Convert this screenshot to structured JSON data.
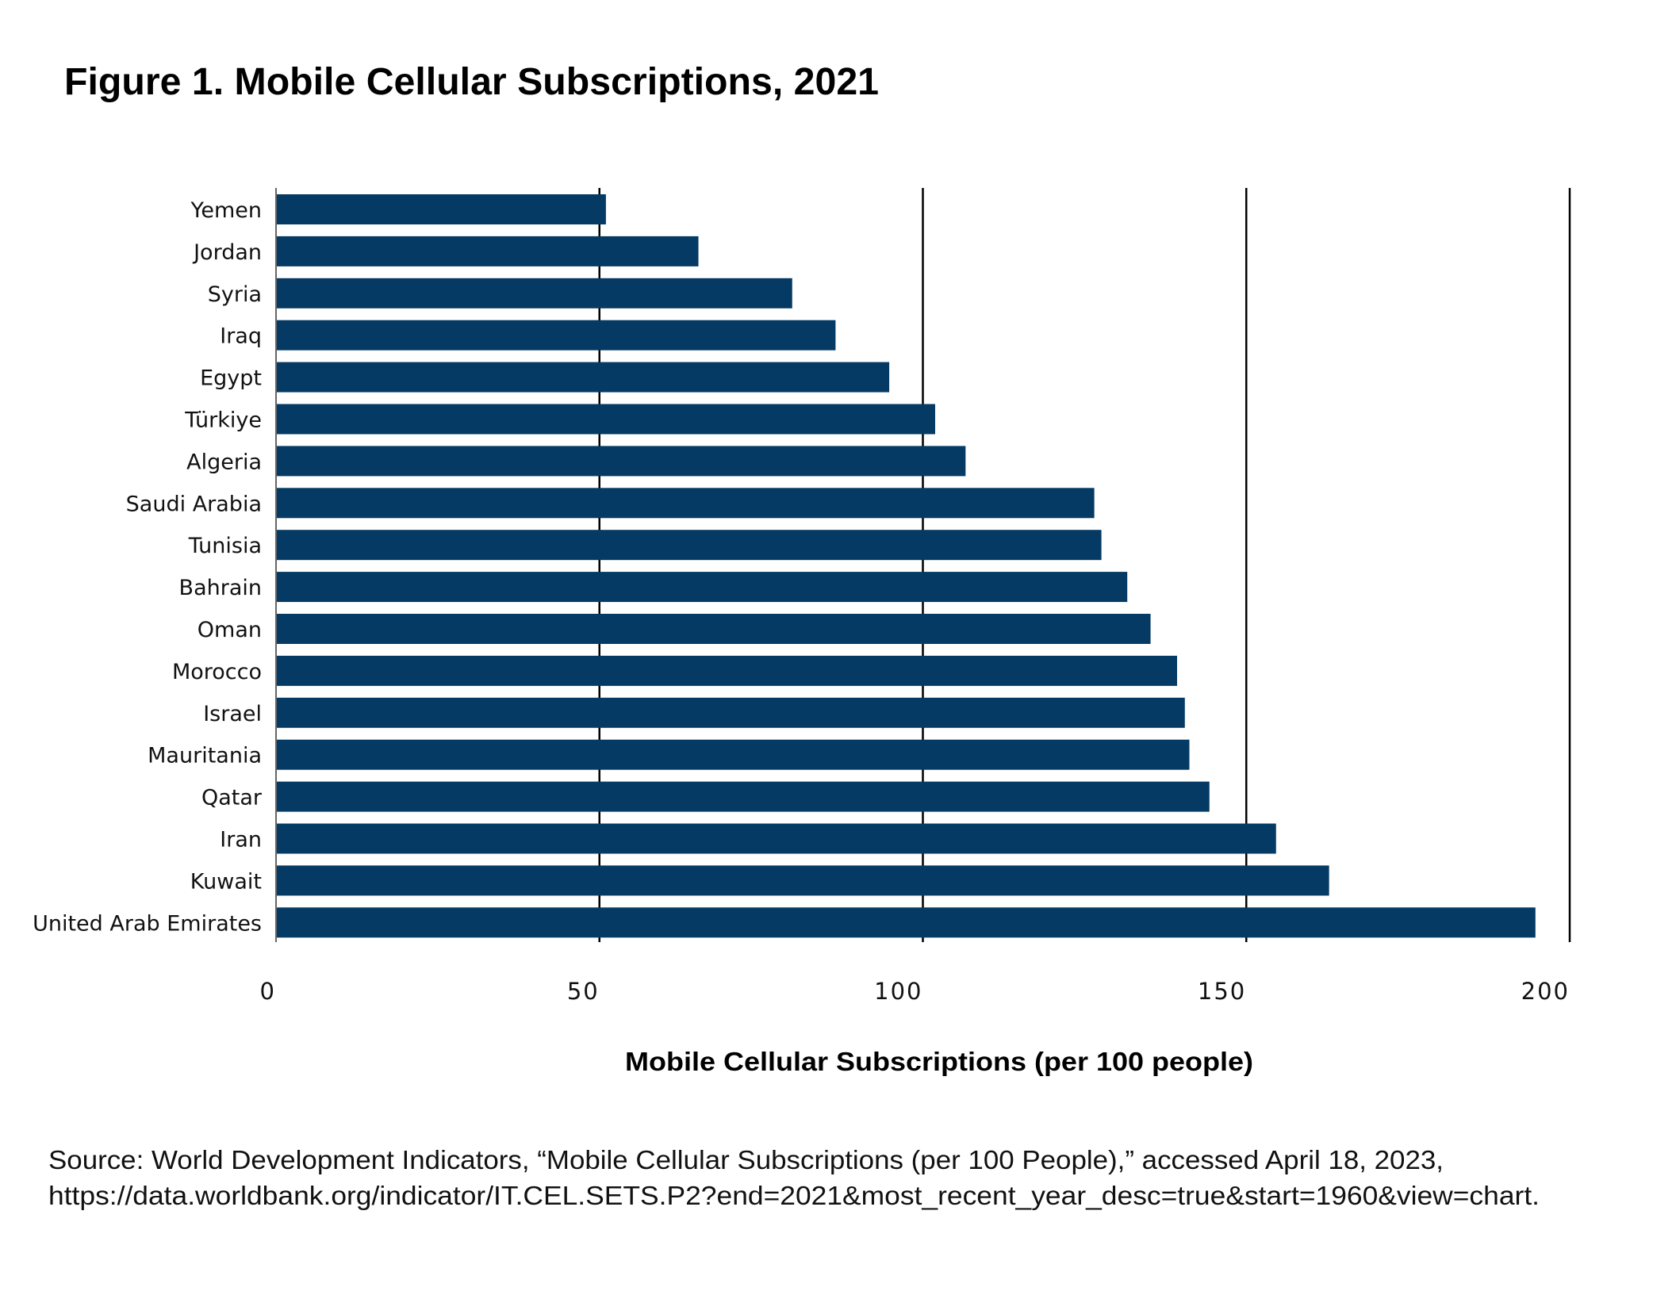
{
  "chart_data": {
    "type": "bar",
    "orientation": "horizontal",
    "title": "Figure 1. Mobile Cellular Subscriptions, 2021",
    "xlabel": "Mobile Cellular Subscriptions (per 100 people)",
    "ylabel": "",
    "xlim": [
      0,
      200
    ],
    "xticks": [
      0,
      50,
      100,
      150,
      200
    ],
    "xtick_labels": [
      "0",
      "50",
      "100",
      "150",
      "200"
    ],
    "grid": "vertical",
    "legend": "none",
    "bar_color": "#043a63",
    "categories": [
      "Yemen",
      "Jordan",
      "Syria",
      "Iraq",
      "Egypt",
      "Türkiye",
      "Algeria",
      "Saudi Arabia",
      "Tunisia",
      "Bahrain",
      "Oman",
      "Morocco",
      "Israel",
      "Mauritania",
      "Qatar",
      "Iran",
      "Kuwait",
      "United Arab Emirates"
    ],
    "values": [
      51.0,
      65.3,
      79.8,
      86.5,
      94.8,
      101.9,
      106.6,
      126.5,
      127.6,
      131.6,
      135.2,
      139.3,
      140.5,
      141.2,
      144.3,
      154.6,
      162.8,
      194.7
    ]
  },
  "source": {
    "line1": "Source: World Development Indicators, “Mobile Cellular Subscriptions (per 100 People),” accessed April 18, 2023,",
    "line2": "https://data.worldbank.org/indicator/IT.CEL.SETS.P2?end=2021&most_recent_year_desc=true&start=1960&view=chart."
  }
}
